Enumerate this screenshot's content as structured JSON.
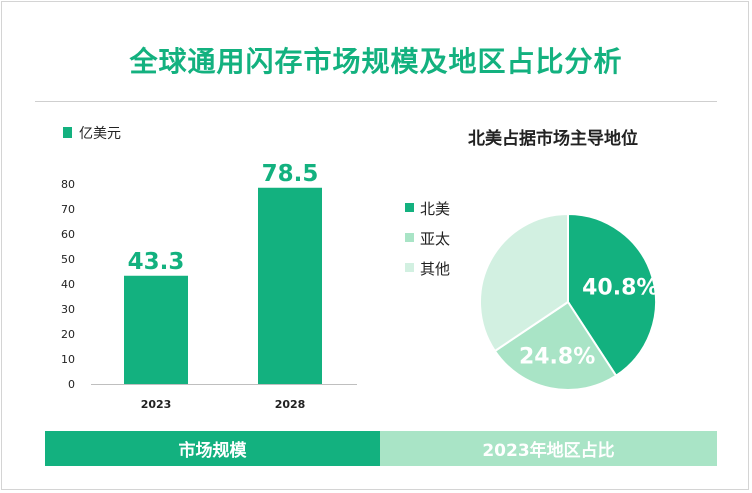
{
  "title": "全球通用闪存市场规模及地区占比分析",
  "footer": {
    "left": "市场规模",
    "right": "2023年地区占比"
  },
  "chart_data": [
    {
      "type": "bar",
      "legend": [
        "亿美元"
      ],
      "categories": [
        "2023",
        "2028"
      ],
      "values": [
        43.3,
        78.5
      ],
      "value_labels": [
        "43.3",
        "78.5"
      ],
      "ylim": [
        0,
        80
      ],
      "yticks": [
        0,
        10,
        20,
        30,
        40,
        50,
        60,
        70,
        80
      ],
      "grid": false,
      "color": "#13b17f"
    },
    {
      "type": "pie",
      "title": "北美占据市场主导地位",
      "slices": [
        {
          "name": "北美",
          "value": 40.8,
          "label": "40.8%",
          "color": "#13b17f"
        },
        {
          "name": "亚太",
          "value": 24.8,
          "label": "24.8%",
          "color": "#a9e4c6"
        },
        {
          "name": "其他",
          "value": 34.4,
          "label": "",
          "color": "#d2f0e1"
        }
      ],
      "legend_position": "left"
    }
  ]
}
